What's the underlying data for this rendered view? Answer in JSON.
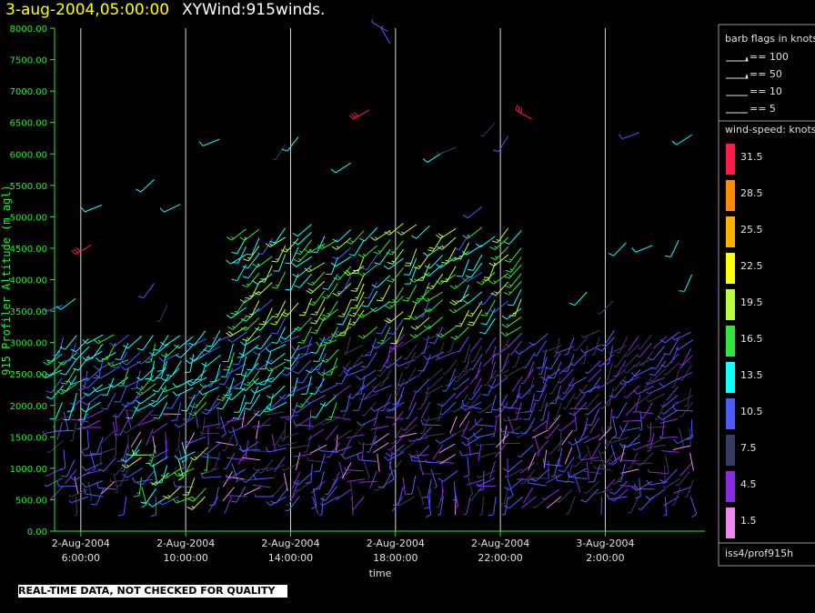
{
  "header": {
    "datetime": "3-aug-2004,05:00:00",
    "product": "XYWind:915winds."
  },
  "footer": {
    "qc_note": "REAL-TIME DATA, NOT CHECKED FOR QUALITY"
  },
  "legend": {
    "barb_title": "barb flags in knots",
    "barbs": [
      {
        "label": "== 100",
        "knots": 100
      },
      {
        "label": "== 50",
        "knots": 50
      },
      {
        "label": "== 10",
        "knots": 10
      },
      {
        "label": "== 5",
        "knots": 5
      }
    ],
    "speed_title": "wind-speed: knots",
    "speed_bins": [
      {
        "label": "31.5",
        "color": "#ff1a4a"
      },
      {
        "label": "28.5",
        "color": "#ff8c00"
      },
      {
        "label": "25.5",
        "color": "#ffb000"
      },
      {
        "label": "22.5",
        "color": "#ffff00"
      },
      {
        "label": "19.5",
        "color": "#b7ff3c"
      },
      {
        "label": "16.5",
        "color": "#2fe63a"
      },
      {
        "label": "13.5",
        "color": "#10ffff"
      },
      {
        "label": "10.5",
        "color": "#4a5cff"
      },
      {
        "label": "7.5",
        "color": "#3a3a66"
      },
      {
        "label": "4.5",
        "color": "#8a2be2"
      },
      {
        "label": "1.5",
        "color": "#ee88ee"
      }
    ],
    "source": "iss4/prof915h"
  },
  "chart_data": {
    "type": "scatter",
    "ylabel": "915 Profiler Altitude (m agl)",
    "xlabel": "time",
    "ylim": [
      0,
      8000
    ],
    "y_ticks": [
      "0.00",
      "500.00",
      "1000.00",
      "1500.00",
      "2000.00",
      "2500.00",
      "3000.00",
      "3500.00",
      "4000.00",
      "4500.00",
      "5000.00",
      "5500.00",
      "6000.00",
      "6500.00",
      "7000.00",
      "7500.00",
      "8000.00"
    ],
    "x_ticks": [
      {
        "hour": 6,
        "date": "2-Aug-2004",
        "time": "6:00:00"
      },
      {
        "hour": 10,
        "date": "2-Aug-2004",
        "time": "10:00:00"
      },
      {
        "hour": 14,
        "date": "2-Aug-2004",
        "time": "14:00:00"
      },
      {
        "hour": 18,
        "date": "2-Aug-2004",
        "time": "18:00:00"
      },
      {
        "hour": 22,
        "date": "2-Aug-2004",
        "time": "22:00:00"
      },
      {
        "hour": 26,
        "date": "3-Aug-2004",
        "time": "2:00:00"
      }
    ],
    "xlim_hours": [
      5.0,
      29.8
    ],
    "grid_x": true,
    "sample_interval_hours": 0.5,
    "wind_barbs": {
      "description": "wind barbs at each profile time/altitude, colored by wind speed (knots)",
      "speed_units": "knots"
    }
  }
}
